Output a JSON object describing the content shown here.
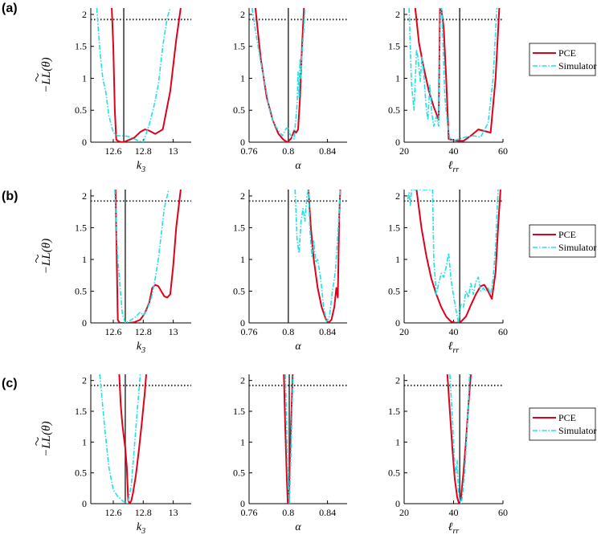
{
  "panel_labels": [
    "(a)",
    "(b)",
    "(c)"
  ],
  "ylabel": "−LL(θ)",
  "legend": {
    "entries": [
      "PCE",
      "Simulator"
    ],
    "colors": [
      "#e0001a",
      "#1fe0e6"
    ],
    "styles": [
      "solid",
      "dashdot"
    ],
    "placement": "right"
  },
  "colors": {
    "pce": "#e0001a",
    "simulator": "#1fe0e6",
    "reference": "#333333",
    "threshold": "#222222"
  },
  "chart_data": [
    {
      "type": "line",
      "panel": "(a)",
      "xlabel": "k3",
      "xlim": [
        12.45,
        13.12
      ],
      "ylim": [
        0,
        2.1
      ],
      "xticks": [
        12.6,
        12.8,
        13
      ],
      "xtick_labels": [
        "12.6",
        "12.8",
        "13"
      ],
      "yticks": [
        0,
        0.5,
        1,
        1.5,
        2
      ],
      "ytick_labels": [
        "0",
        "0.5",
        "1",
        "1.5",
        "2"
      ],
      "threshold": 1.92,
      "reference_x": 12.67,
      "series": [
        {
          "name": "PCE",
          "x": [
            12.59,
            12.6,
            12.61,
            12.62,
            12.63,
            12.64,
            12.66,
            12.68,
            12.7,
            12.74,
            12.78,
            12.81,
            12.84,
            12.88,
            12.93,
            12.98,
            13.02,
            13.05
          ],
          "y": [
            2.1,
            1.5,
            0.5,
            0.04,
            0.02,
            0.01,
            0.0,
            0.01,
            0.03,
            0.07,
            0.16,
            0.2,
            0.18,
            0.13,
            0.2,
            0.8,
            1.6,
            2.1
          ]
        },
        {
          "name": "Simulator",
          "x": [
            12.49,
            12.51,
            12.53,
            12.55,
            12.57,
            12.6,
            12.63,
            12.66,
            12.7,
            12.74,
            12.77,
            12.8,
            12.84,
            12.87,
            12.9,
            12.93,
            12.96,
            12.98
          ],
          "y": [
            2.1,
            1.45,
            1.0,
            0.78,
            0.42,
            0.15,
            0.1,
            0.1,
            0.09,
            0.05,
            0.02,
            0.0,
            0.28,
            0.55,
            0.9,
            1.5,
            1.95,
            2.1
          ]
        }
      ]
    },
    {
      "type": "line",
      "panel": "(a)",
      "xlabel": "α",
      "xlim": [
        0.76,
        0.86
      ],
      "ylim": [
        0,
        2.1
      ],
      "xticks": [
        0.76,
        0.8,
        0.84
      ],
      "xtick_labels": [
        "0.76",
        "0.8",
        "0.84"
      ],
      "yticks": [
        0,
        0.5,
        1,
        1.5,
        2
      ],
      "ytick_labels": [
        "0",
        "0.5",
        "1",
        "1.5",
        "2"
      ],
      "threshold": 1.92,
      "reference_x": 0.8,
      "series": [
        {
          "name": "PCE",
          "x": [
            0.7665,
            0.772,
            0.778,
            0.784,
            0.79,
            0.795,
            0.799,
            0.803,
            0.806,
            0.808,
            0.81,
            0.812,
            0.814,
            0.816
          ],
          "y": [
            2.1,
            1.3,
            0.7,
            0.35,
            0.13,
            0.04,
            0.0,
            0.06,
            0.18,
            0.15,
            0.2,
            0.7,
            1.5,
            2.1
          ]
        },
        {
          "name": "Simulator",
          "x": [
            0.763,
            0.767,
            0.772,
            0.777,
            0.781,
            0.785,
            0.79,
            0.794,
            0.798,
            0.8,
            0.802,
            0.806,
            0.809,
            0.81,
            0.811,
            0.812,
            0.813,
            0.814,
            0.815,
            0.816,
            0.817
          ],
          "y": [
            2.1,
            1.7,
            1.25,
            0.85,
            0.5,
            0.3,
            0.18,
            0.1,
            0.22,
            0.21,
            0.12,
            0.05,
            0.6,
            1.1,
            0.7,
            1.3,
            1.0,
            1.4,
            1.6,
            1.8,
            2.1
          ]
        }
      ]
    },
    {
      "type": "line",
      "panel": "(a)",
      "xlabel": "ℓrr",
      "xlim": [
        20,
        60
      ],
      "ylim": [
        0,
        2.1
      ],
      "xticks": [
        20,
        40,
        60
      ],
      "xtick_labels": [
        "20",
        "40",
        "60"
      ],
      "yticks": [
        0,
        0.5,
        1,
        1.5,
        2
      ],
      "ytick_labels": [
        "0",
        "0.5",
        "1",
        "1.5",
        "2"
      ],
      "threshold": 1.92,
      "reference_x": 42.5,
      "series": [
        {
          "name": "PCE",
          "x": [
            24.5,
            26,
            28,
            30,
            32,
            33.5,
            34,
            34.5,
            35,
            36,
            37,
            38,
            40,
            42,
            44,
            47,
            50,
            53,
            55,
            57,
            58.5
          ],
          "y": [
            2.1,
            1.55,
            1.15,
            0.8,
            0.55,
            0.4,
            0.35,
            2.1,
            2.1,
            1.8,
            1.0,
            0.05,
            0.03,
            0.02,
            0.02,
            0.1,
            0.2,
            0.17,
            0.15,
            1.0,
            2.1
          ]
        },
        {
          "name": "Simulator",
          "x": [
            22,
            23,
            24,
            25,
            25.7,
            26.5,
            27.2,
            28,
            28.8,
            29.6,
            30.4,
            31.2,
            32,
            33,
            34,
            34.7,
            35.2,
            35.7,
            36.5,
            37.5,
            38.5,
            40,
            42,
            45,
            48,
            51,
            54,
            56,
            57.5
          ],
          "y": [
            2.1,
            0.9,
            0.5,
            1.45,
            1.3,
            0.95,
            1.35,
            1.05,
            0.6,
            0.35,
            0.9,
            0.45,
            0.25,
            0.4,
            0.25,
            2.1,
            2.1,
            1.6,
            0.7,
            0.3,
            0.05,
            0.02,
            0.05,
            0.08,
            0.1,
            0.08,
            0.3,
            1.0,
            2.1
          ]
        }
      ]
    },
    {
      "type": "line",
      "panel": "(b)",
      "xlabel": "k3",
      "xlim": [
        12.45,
        13.12
      ],
      "ylim": [
        0,
        2.1
      ],
      "xticks": [
        12.6,
        12.8,
        13
      ],
      "xtick_labels": [
        "12.6",
        "12.8",
        "13"
      ],
      "yticks": [
        0,
        0.5,
        1,
        1.5,
        2
      ],
      "ytick_labels": [
        "0",
        "0.5",
        "1",
        "1.5",
        "2"
      ],
      "threshold": 1.92,
      "reference_x": 12.68,
      "series": [
        {
          "name": "PCE",
          "x": [
            12.615,
            12.63,
            12.64,
            12.65,
            12.7,
            12.74,
            12.78,
            12.81,
            12.84,
            12.86,
            12.88,
            12.9,
            12.92,
            12.94,
            12.96,
            12.98,
            13.0,
            13.02,
            13.05
          ],
          "y": [
            2.1,
            0.05,
            0.01,
            0.0,
            0.0,
            0.01,
            0.05,
            0.15,
            0.32,
            0.55,
            0.6,
            0.58,
            0.5,
            0.42,
            0.4,
            0.45,
            0.9,
            1.5,
            2.1
          ]
        },
        {
          "name": "Simulator",
          "x": [
            12.61,
            12.63,
            12.66,
            12.68,
            12.7,
            12.74,
            12.78,
            12.8,
            12.82,
            12.84,
            12.86,
            12.88,
            12.9,
            12.92,
            12.94,
            12.97
          ],
          "y": [
            2.1,
            1.0,
            0.15,
            0.0,
            0.02,
            0.08,
            0.17,
            0.12,
            0.18,
            0.3,
            0.45,
            0.7,
            1.0,
            1.4,
            1.8,
            2.1
          ]
        }
      ]
    },
    {
      "type": "line",
      "panel": "(b)",
      "xlabel": "α",
      "xlim": [
        0.76,
        0.86
      ],
      "ylim": [
        0,
        2.1
      ],
      "xticks": [
        0.76,
        0.8,
        0.84
      ],
      "xtick_labels": [
        "0.76",
        "0.8",
        "0.84"
      ],
      "yticks": [
        0,
        0.5,
        1,
        1.5,
        2
      ],
      "ytick_labels": [
        "0",
        "0.5",
        "1",
        "1.5",
        "2"
      ],
      "threshold": 1.92,
      "reference_x": 0.8,
      "series": [
        {
          "name": "PCE",
          "x": [
            0.8205,
            0.823,
            0.826,
            0.83,
            0.834,
            0.838,
            0.841,
            0.844,
            0.847,
            0.849,
            0.8505,
            0.851,
            0.852,
            0.853
          ],
          "y": [
            2.1,
            1.5,
            1.0,
            0.55,
            0.25,
            0.07,
            0.0,
            0.05,
            0.25,
            0.55,
            0.4,
            0.8,
            1.7,
            2.1
          ]
        },
        {
          "name": "Simulator",
          "x": [
            0.807,
            0.809,
            0.811,
            0.813,
            0.815,
            0.817,
            0.819,
            0.8205,
            0.822,
            0.824,
            0.826,
            0.828,
            0.83,
            0.833,
            0.836,
            0.839,
            0.842,
            0.845,
            0.848,
            0.851,
            0.853
          ],
          "y": [
            2.1,
            1.3,
            1.1,
            1.6,
            1.8,
            1.6,
            2.0,
            2.1,
            1.5,
            1.05,
            1.3,
            0.95,
            1.0,
            0.7,
            0.25,
            0.02,
            0.1,
            0.5,
            0.8,
            1.5,
            2.1
          ]
        }
      ]
    },
    {
      "type": "line",
      "panel": "(b)",
      "xlabel": "ℓrr",
      "xlim": [
        20,
        60
      ],
      "ylim": [
        0,
        2.1
      ],
      "xticks": [
        20,
        40,
        60
      ],
      "xtick_labels": [
        "20",
        "40",
        "60"
      ],
      "yticks": [
        0,
        0.5,
        1,
        1.5,
        2
      ],
      "ytick_labels": [
        "0",
        "0.5",
        "1",
        "1.5",
        "2"
      ],
      "threshold": 1.92,
      "reference_x": 42.5,
      "series": [
        {
          "name": "PCE",
          "x": [
            25,
            27,
            29,
            31,
            33,
            35,
            37,
            39,
            41,
            43,
            45,
            47,
            49,
            51,
            52.5,
            54,
            55.5,
            57,
            58,
            59
          ],
          "y": [
            2.1,
            1.5,
            1.05,
            0.7,
            0.45,
            0.25,
            0.1,
            0.02,
            0.0,
            0.02,
            0.1,
            0.28,
            0.45,
            0.58,
            0.6,
            0.5,
            0.38,
            0.8,
            1.5,
            2.1
          ]
        },
        {
          "name": "Simulator",
          "x": [
            21.5,
            22,
            22.5,
            23,
            31.5,
            32,
            33,
            34,
            35,
            36,
            37,
            38,
            39,
            40,
            41,
            42,
            43,
            44,
            45,
            46,
            47,
            48,
            49,
            50,
            51,
            52,
            53,
            54,
            55,
            56,
            57,
            58
          ],
          "y": [
            1.95,
            2.05,
            1.85,
            2.1,
            2.1,
            1.0,
            0.45,
            0.62,
            0.78,
            0.72,
            0.88,
            1.1,
            0.68,
            0.42,
            0.2,
            0.0,
            0.3,
            0.25,
            0.5,
            0.4,
            0.62,
            0.45,
            0.65,
            0.72,
            0.5,
            0.55,
            0.5,
            0.55,
            0.45,
            0.7,
            1.2,
            2.1
          ]
        }
      ]
    },
    {
      "type": "line",
      "panel": "(c)",
      "xlabel": "k3",
      "xlim": [
        12.45,
        13.12
      ],
      "ylim": [
        0,
        2.1
      ],
      "xticks": [
        12.6,
        12.8,
        13
      ],
      "xtick_labels": [
        "12.6",
        "12.8",
        "13"
      ],
      "yticks": [
        0,
        0.5,
        1,
        1.5,
        2
      ],
      "ytick_labels": [
        "0",
        "0.5",
        "1",
        "1.5",
        "2"
      ],
      "threshold": 1.92,
      "reference_x": 12.68,
      "series": [
        {
          "name": "PCE",
          "x": [
            12.64,
            12.65,
            12.66,
            12.67,
            12.68,
            12.69,
            12.7,
            12.71,
            12.72,
            12.73,
            12.75,
            12.77,
            12.79,
            12.81,
            12.82
          ],
          "y": [
            2.1,
            1.6,
            1.3,
            1.1,
            0.9,
            0.6,
            0.05,
            0.0,
            0.05,
            0.15,
            0.45,
            0.85,
            1.3,
            1.8,
            2.1
          ]
        },
        {
          "name": "Simulator",
          "x": [
            12.51,
            12.54,
            12.57,
            12.6,
            12.63,
            12.66,
            12.69,
            12.7,
            12.72,
            12.74,
            12.76,
            12.78
          ],
          "y": [
            2.1,
            1.3,
            0.6,
            0.22,
            0.12,
            0.05,
            0.0,
            0.05,
            0.3,
            0.9,
            1.5,
            2.1
          ]
        }
      ]
    },
    {
      "type": "line",
      "panel": "(c)",
      "xlabel": "α",
      "xlim": [
        0.76,
        0.86
      ],
      "ylim": [
        0,
        2.1
      ],
      "xticks": [
        0.76,
        0.8,
        0.84
      ],
      "xtick_labels": [
        "0.76",
        "0.8",
        "0.84"
      ],
      "yticks": [
        0,
        0.5,
        1,
        1.5,
        2
      ],
      "ytick_labels": [
        "0",
        "0.5",
        "1",
        "1.5",
        "2"
      ],
      "threshold": 1.92,
      "reference_x": 0.801,
      "series": [
        {
          "name": "PCE",
          "x": [
            0.7955,
            0.797,
            0.7985,
            0.7995,
            0.8005,
            0.8015,
            0.803,
            0.8045
          ],
          "y": [
            2.1,
            1.2,
            0.4,
            0.0,
            0.1,
            0.6,
            1.4,
            2.1
          ]
        },
        {
          "name": "Simulator",
          "x": [
            0.797,
            0.798,
            0.799,
            0.8,
            0.801,
            0.8015,
            0.802,
            0.803,
            0.804,
            0.805
          ],
          "y": [
            2.1,
            1.5,
            0.7,
            0.3,
            0.0,
            0.2,
            0.4,
            1.0,
            1.6,
            2.1
          ]
        }
      ]
    },
    {
      "type": "line",
      "panel": "(c)",
      "xlabel": "ℓrr",
      "xlim": [
        20,
        60
      ],
      "ylim": [
        0,
        2.1
      ],
      "xticks": [
        20,
        40,
        60
      ],
      "xtick_labels": [
        "20",
        "40",
        "60"
      ],
      "yticks": [
        0,
        0.5,
        1,
        1.5,
        2
      ],
      "ytick_labels": [
        "0",
        "0.5",
        "1",
        "1.5",
        "2"
      ],
      "threshold": 1.92,
      "reference_x": 42.5,
      "series": [
        {
          "name": "PCE",
          "x": [
            37.5,
            38.5,
            39.5,
            40.5,
            41.5,
            42.2,
            43,
            44,
            45,
            46,
            47
          ],
          "y": [
            2.1,
            1.5,
            0.9,
            0.4,
            0.1,
            0.0,
            0.1,
            0.5,
            1.0,
            1.6,
            2.1
          ]
        },
        {
          "name": "Simulator",
          "x": [
            38.5,
            39.5,
            40.5,
            41,
            41.5,
            42,
            42.5,
            43,
            43.5,
            44.5,
            45.5,
            46.5
          ],
          "y": [
            2.1,
            1.4,
            0.6,
            0.5,
            0.7,
            0.2,
            0.05,
            0.0,
            0.1,
            0.5,
            1.2,
            2.1
          ]
        }
      ]
    }
  ]
}
